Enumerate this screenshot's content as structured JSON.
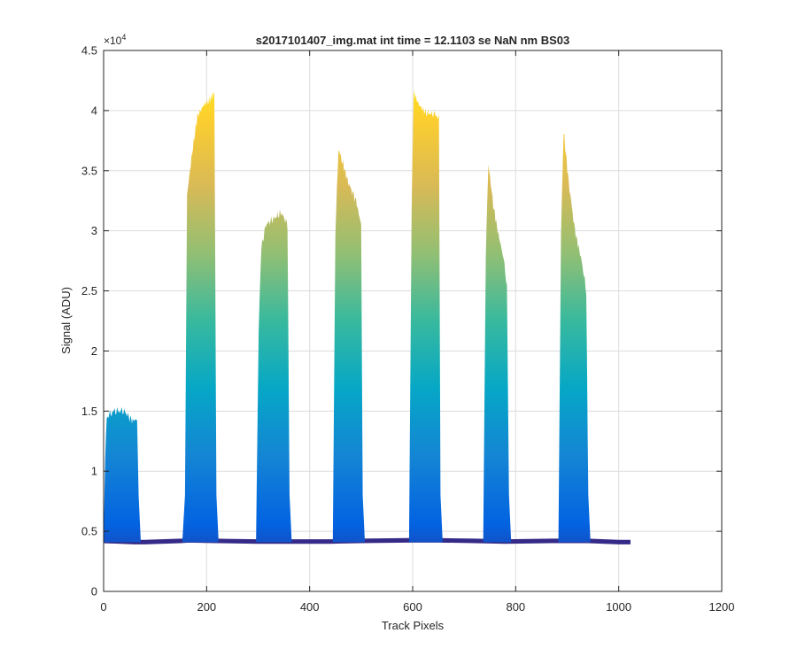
{
  "chart_data": {
    "type": "area",
    "title": "s2017101407_img.mat int time = 12.1103 se  NaN nm BS03",
    "xlabel": "Track Pixels",
    "ylabel": "Signal (ADU)",
    "y_exponent_label": "×10",
    "y_exponent_power": "4",
    "xlim": [
      0,
      1200
    ],
    "ylim": [
      0,
      45000
    ],
    "xticks": [
      0,
      200,
      400,
      600,
      800,
      1000,
      1200
    ],
    "xtick_labels": [
      "0",
      "200",
      "400",
      "600",
      "800",
      "1000",
      "1200"
    ],
    "yticks": [
      0,
      5000,
      10000,
      15000,
      20000,
      25000,
      30000,
      35000,
      40000,
      45000
    ],
    "ytick_labels": [
      "0",
      "0.5",
      "1",
      "1.5",
      "2",
      "2.5",
      "3",
      "3.5",
      "4",
      "4.5"
    ],
    "grid": true,
    "colormap": [
      "#352a87",
      "#0363e1",
      "#1485d4",
      "#06a7c6",
      "#38b99e",
      "#92bf73",
      "#d9ba56",
      "#fcce2e",
      "#f9fb0e"
    ],
    "baseline": [
      [
        0,
        4200
      ],
      [
        60,
        4100
      ],
      [
        80,
        4100
      ],
      [
        150,
        4200
      ],
      [
        165,
        4250
      ],
      [
        220,
        4200
      ],
      [
        300,
        4150
      ],
      [
        360,
        4150
      ],
      [
        440,
        4150
      ],
      [
        500,
        4200
      ],
      [
        590,
        4250
      ],
      [
        650,
        4250
      ],
      [
        720,
        4200
      ],
      [
        780,
        4150
      ],
      [
        870,
        4200
      ],
      [
        940,
        4200
      ],
      [
        1000,
        4100
      ],
      [
        1022,
        4100
      ]
    ],
    "peaks": [
      {
        "profile": [
          [
            0,
            4500
          ],
          [
            3,
            11000
          ],
          [
            6,
            14500
          ],
          [
            20,
            15000
          ],
          [
            40,
            15000
          ],
          [
            55,
            14200
          ],
          [
            65,
            14300
          ],
          [
            68,
            8000
          ],
          [
            72,
            4300
          ]
        ]
      },
      {
        "profile": [
          [
            153,
            4300
          ],
          [
            158,
            8000
          ],
          [
            162,
            33000
          ],
          [
            172,
            36500
          ],
          [
            182,
            39500
          ],
          [
            195,
            40500
          ],
          [
            205,
            40800
          ],
          [
            215,
            41500
          ],
          [
            219,
            8000
          ],
          [
            223,
            4300
          ]
        ]
      },
      {
        "profile": [
          [
            296,
            4300
          ],
          [
            301,
            22000
          ],
          [
            306,
            28500
          ],
          [
            315,
            30500
          ],
          [
            330,
            31000
          ],
          [
            345,
            31500
          ],
          [
            357,
            30500
          ],
          [
            361,
            8000
          ],
          [
            365,
            4300
          ]
        ]
      },
      {
        "profile": [
          [
            445,
            4300
          ],
          [
            450,
            30000
          ],
          [
            456,
            36800
          ],
          [
            465,
            35500
          ],
          [
            475,
            34000
          ],
          [
            490,
            32500
          ],
          [
            500,
            30500
          ],
          [
            503,
            8000
          ],
          [
            507,
            4300
          ]
        ]
      },
      {
        "profile": [
          [
            593,
            4300
          ],
          [
            598,
            32000
          ],
          [
            602,
            41500
          ],
          [
            612,
            40500
          ],
          [
            625,
            39800
          ],
          [
            640,
            39700
          ],
          [
            651,
            39500
          ],
          [
            654,
            8000
          ],
          [
            658,
            4300
          ]
        ]
      },
      {
        "profile": [
          [
            737,
            4300
          ],
          [
            742,
            28000
          ],
          [
            747,
            35800
          ],
          [
            755,
            32500
          ],
          [
            765,
            30000
          ],
          [
            775,
            28000
          ],
          [
            783,
            25500
          ],
          [
            787,
            8000
          ],
          [
            791,
            4300
          ]
        ]
      },
      {
        "profile": [
          [
            883,
            4300
          ],
          [
            888,
            30000
          ],
          [
            893,
            38300
          ],
          [
            903,
            34000
          ],
          [
            915,
            30000
          ],
          [
            928,
            27500
          ],
          [
            937,
            25000
          ],
          [
            941,
            8000
          ],
          [
            945,
            4300
          ]
        ]
      }
    ]
  }
}
